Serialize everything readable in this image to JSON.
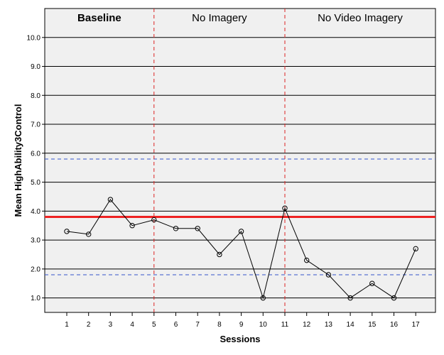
{
  "chart_data": {
    "type": "line",
    "xlabel": "Sessions",
    "ylabel": "Mean HighAbility3Control",
    "ylim": [
      0.5,
      11.0
    ],
    "yticks": [
      "1.0",
      "2.0",
      "3.0",
      "4.0",
      "5.0",
      "6.0",
      "7.0",
      "8.0",
      "9.0",
      "10.0"
    ],
    "x": [
      1,
      2,
      3,
      4,
      5,
      6,
      7,
      8,
      9,
      10,
      11,
      12,
      13,
      14,
      15,
      16,
      17
    ],
    "values": [
      3.3,
      3.2,
      4.4,
      3.5,
      3.7,
      3.4,
      3.4,
      2.5,
      3.3,
      1.0,
      4.1,
      2.3,
      1.8,
      1.0,
      1.5,
      1.0,
      2.7
    ],
    "grid": "horizontal",
    "phases": [
      {
        "label": "Baseline"
      },
      {
        "label": "No Imagery"
      },
      {
        "label": "No Video Imagery"
      }
    ],
    "phase_boundaries": [
      5,
      11
    ],
    "reference_lines": {
      "mean": 3.8,
      "upper": 5.8,
      "lower": 1.8
    },
    "colors": {
      "series": "#000000",
      "mean_line": "#ee2222",
      "limit_lines": "#3355cc",
      "phase_lines": "#dd2222",
      "plot_bg": "#f0f0f0"
    }
  }
}
